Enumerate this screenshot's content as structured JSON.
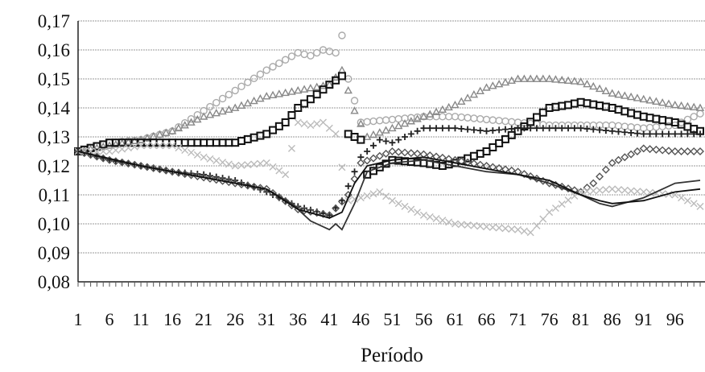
{
  "chart_data": {
    "type": "line",
    "title": "",
    "xlabel": "Período",
    "ylabel": "",
    "xlim": [
      1,
      100
    ],
    "ylim": [
      0.08,
      0.17
    ],
    "grid": true,
    "legend": "none",
    "y_ticks": [
      "0,08",
      "0,09",
      "0,10",
      "0,11",
      "0,12",
      "0,13",
      "0,14",
      "0,15",
      "0,16",
      "0,17"
    ],
    "x_ticks": [
      "1",
      "6",
      "11",
      "16",
      "21",
      "26",
      "31",
      "36",
      "41",
      "46",
      "51",
      "56",
      "61",
      "66",
      "71",
      "76",
      "81",
      "86",
      "91",
      "96"
    ],
    "series": [
      {
        "marker": "circle-open",
        "color": "#aaaaaa",
        "points": [
          [
            1,
            0.125
          ],
          [
            6,
            0.128
          ],
          [
            11,
            0.129
          ],
          [
            16,
            0.132
          ],
          [
            21,
            0.139
          ],
          [
            26,
            0.146
          ],
          [
            31,
            0.153
          ],
          [
            36,
            0.159
          ],
          [
            38,
            0.158
          ],
          [
            40,
            0.16
          ],
          [
            42,
            0.159
          ],
          [
            43,
            0.165
          ],
          [
            44,
            0.15
          ],
          [
            46,
            0.135
          ],
          [
            51,
            0.136
          ],
          [
            56,
            0.137
          ],
          [
            61,
            0.137
          ],
          [
            66,
            0.136
          ],
          [
            71,
            0.135
          ],
          [
            76,
            0.134
          ],
          [
            81,
            0.134
          ],
          [
            86,
            0.134
          ],
          [
            91,
            0.133
          ],
          [
            96,
            0.134
          ],
          [
            100,
            0.138
          ]
        ]
      },
      {
        "marker": "triangle-open",
        "color": "#888888",
        "points": [
          [
            1,
            0.125
          ],
          [
            6,
            0.127
          ],
          [
            11,
            0.129
          ],
          [
            16,
            0.132
          ],
          [
            21,
            0.137
          ],
          [
            26,
            0.14
          ],
          [
            31,
            0.144
          ],
          [
            36,
            0.146
          ],
          [
            41,
            0.148
          ],
          [
            43,
            0.153
          ],
          [
            45,
            0.139
          ],
          [
            47,
            0.13
          ],
          [
            51,
            0.133
          ],
          [
            56,
            0.137
          ],
          [
            61,
            0.141
          ],
          [
            66,
            0.147
          ],
          [
            71,
            0.15
          ],
          [
            76,
            0.15
          ],
          [
            81,
            0.149
          ],
          [
            86,
            0.145
          ],
          [
            91,
            0.143
          ],
          [
            96,
            0.141
          ],
          [
            100,
            0.14
          ]
        ]
      },
      {
        "marker": "square-open",
        "color": "#111111",
        "points": [
          [
            1,
            0.125
          ],
          [
            6,
            0.128
          ],
          [
            11,
            0.128
          ],
          [
            16,
            0.128
          ],
          [
            21,
            0.128
          ],
          [
            26,
            0.128
          ],
          [
            31,
            0.131
          ],
          [
            34,
            0.135
          ],
          [
            36,
            0.14
          ],
          [
            38,
            0.143
          ],
          [
            41,
            0.148
          ],
          [
            43,
            0.151
          ],
          [
            44,
            0.131
          ],
          [
            46,
            0.129
          ],
          [
            47,
            0.117
          ],
          [
            51,
            0.122
          ],
          [
            56,
            0.121
          ],
          [
            59,
            0.12
          ],
          [
            61,
            0.121
          ],
          [
            66,
            0.125
          ],
          [
            71,
            0.132
          ],
          [
            76,
            0.14
          ],
          [
            79,
            0.141
          ],
          [
            81,
            0.142
          ],
          [
            86,
            0.14
          ],
          [
            91,
            0.137
          ],
          [
            96,
            0.135
          ],
          [
            100,
            0.132
          ]
        ]
      },
      {
        "marker": "plus",
        "color": "#222222",
        "points": [
          [
            1,
            0.125
          ],
          [
            6,
            0.122
          ],
          [
            11,
            0.12
          ],
          [
            16,
            0.118
          ],
          [
            21,
            0.117
          ],
          [
            26,
            0.115
          ],
          [
            31,
            0.111
          ],
          [
            36,
            0.106
          ],
          [
            41,
            0.103
          ],
          [
            43,
            0.108
          ],
          [
            46,
            0.123
          ],
          [
            49,
            0.129
          ],
          [
            51,
            0.128
          ],
          [
            56,
            0.133
          ],
          [
            61,
            0.133
          ],
          [
            66,
            0.132
          ],
          [
            71,
            0.133
          ],
          [
            76,
            0.133
          ],
          [
            81,
            0.133
          ],
          [
            86,
            0.132
          ],
          [
            91,
            0.131
          ],
          [
            96,
            0.131
          ],
          [
            100,
            0.131
          ]
        ]
      },
      {
        "marker": "diamond-open",
        "color": "#555555",
        "points": [
          [
            1,
            0.125
          ],
          [
            6,
            0.122
          ],
          [
            11,
            0.12
          ],
          [
            16,
            0.118
          ],
          [
            21,
            0.116
          ],
          [
            26,
            0.114
          ],
          [
            31,
            0.112
          ],
          [
            36,
            0.105
          ],
          [
            41,
            0.103
          ],
          [
            44,
            0.11
          ],
          [
            46,
            0.121
          ],
          [
            51,
            0.125
          ],
          [
            56,
            0.124
          ],
          [
            61,
            0.122
          ],
          [
            66,
            0.12
          ],
          [
            71,
            0.118
          ],
          [
            76,
            0.114
          ],
          [
            81,
            0.111
          ],
          [
            83,
            0.114
          ],
          [
            86,
            0.121
          ],
          [
            91,
            0.126
          ],
          [
            96,
            0.125
          ],
          [
            100,
            0.125
          ]
        ]
      },
      {
        "marker": "x",
        "color": "#bbbbbb",
        "points": [
          [
            1,
            0.125
          ],
          [
            6,
            0.125
          ],
          [
            11,
            0.127
          ],
          [
            16,
            0.127
          ],
          [
            21,
            0.123
          ],
          [
            26,
            0.12
          ],
          [
            31,
            0.121
          ],
          [
            34,
            0.117
          ],
          [
            36,
            0.135
          ],
          [
            38,
            0.134
          ],
          [
            40,
            0.135
          ],
          [
            42,
            0.131
          ],
          [
            44,
            0.108
          ],
          [
            46,
            0.109
          ],
          [
            49,
            0.111
          ],
          [
            51,
            0.108
          ],
          [
            56,
            0.103
          ],
          [
            61,
            0.1
          ],
          [
            66,
            0.099
          ],
          [
            71,
            0.098
          ],
          [
            73,
            0.097
          ],
          [
            76,
            0.104
          ],
          [
            81,
            0.111
          ],
          [
            86,
            0.112
          ],
          [
            91,
            0.111
          ],
          [
            96,
            0.11
          ],
          [
            100,
            0.106
          ]
        ]
      },
      {
        "marker": "line",
        "color": "#333333",
        "points": [
          [
            1,
            0.125
          ],
          [
            11,
            0.12
          ],
          [
            21,
            0.116
          ],
          [
            31,
            0.112
          ],
          [
            35,
            0.107
          ],
          [
            38,
            0.101
          ],
          [
            41,
            0.098
          ],
          [
            42,
            0.1
          ],
          [
            43,
            0.098
          ],
          [
            45,
            0.107
          ],
          [
            47,
            0.118
          ],
          [
            51,
            0.121
          ],
          [
            56,
            0.122
          ],
          [
            61,
            0.12
          ],
          [
            66,
            0.118
          ],
          [
            71,
            0.117
          ],
          [
            76,
            0.114
          ],
          [
            81,
            0.11
          ],
          [
            84,
            0.107
          ],
          [
            86,
            0.106
          ],
          [
            91,
            0.109
          ],
          [
            96,
            0.114
          ],
          [
            100,
            0.115
          ]
        ]
      },
      {
        "marker": "line",
        "color": "#111111",
        "points": [
          [
            1,
            0.125
          ],
          [
            11,
            0.12
          ],
          [
            21,
            0.116
          ],
          [
            31,
            0.112
          ],
          [
            36,
            0.105
          ],
          [
            41,
            0.102
          ],
          [
            43,
            0.104
          ],
          [
            45,
            0.114
          ],
          [
            47,
            0.12
          ],
          [
            51,
            0.122
          ],
          [
            56,
            0.123
          ],
          [
            61,
            0.121
          ],
          [
            66,
            0.119
          ],
          [
            71,
            0.117
          ],
          [
            76,
            0.115
          ],
          [
            81,
            0.11
          ],
          [
            84,
            0.108
          ],
          [
            86,
            0.107
          ],
          [
            91,
            0.108
          ],
          [
            96,
            0.111
          ],
          [
            100,
            0.112
          ]
        ]
      }
    ]
  }
}
